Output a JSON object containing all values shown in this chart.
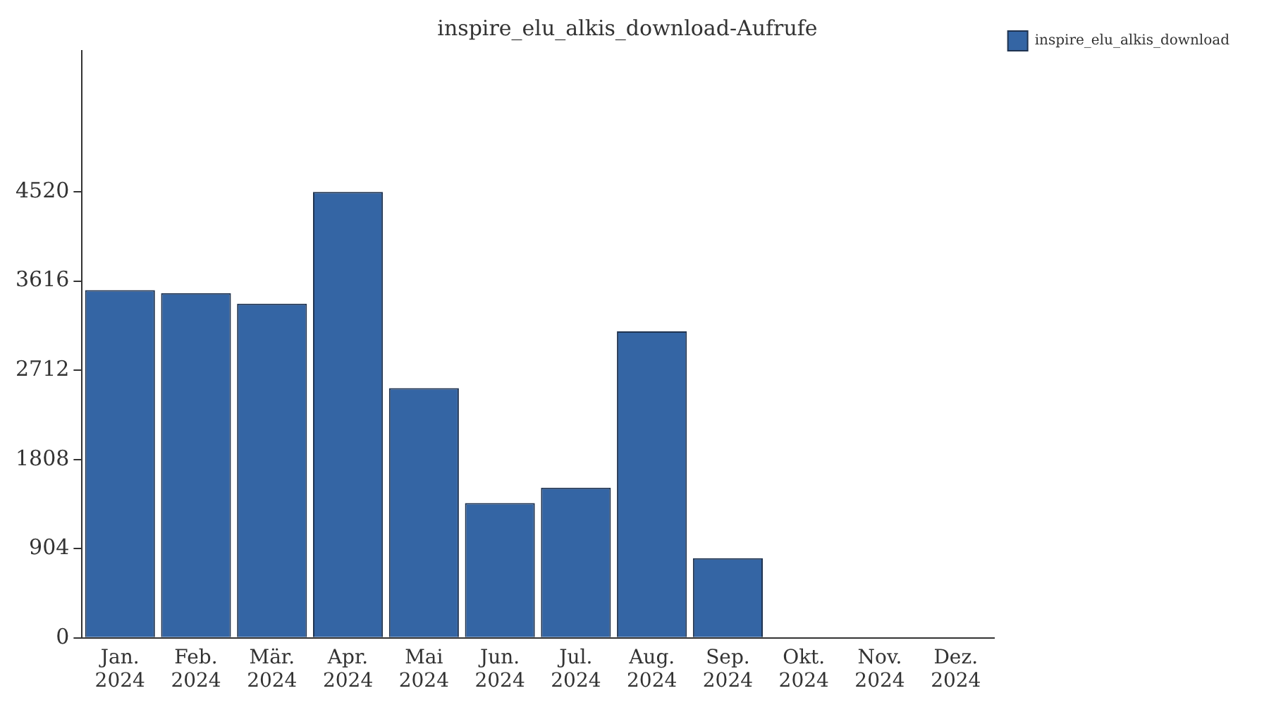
{
  "chart_data": {
    "type": "bar",
    "title": "inspire_elu_alkis_download-Aufrufe",
    "categories": [
      "Jan. 2024",
      "Feb. 2024",
      "Mär. 2024",
      "Apr. 2024",
      "Mai 2024",
      "Jun. 2024",
      "Jul. 2024",
      "Aug. 2024",
      "Sep. 2024",
      "Okt. 2024",
      "Nov. 2024",
      "Dez. 2024"
    ],
    "series": [
      {
        "name": "inspire_elu_alkis_download",
        "color": "#3465a4",
        "values": [
          3525,
          3494,
          3386,
          4520,
          2531,
          1367,
          1522,
          3106,
          808,
          0,
          0,
          0
        ]
      }
    ],
    "ylim": [
      0,
      5950
    ],
    "yticks": [
      0,
      904,
      1808,
      2712,
      3616,
      4520
    ],
    "grid": false,
    "legend": "top right"
  }
}
